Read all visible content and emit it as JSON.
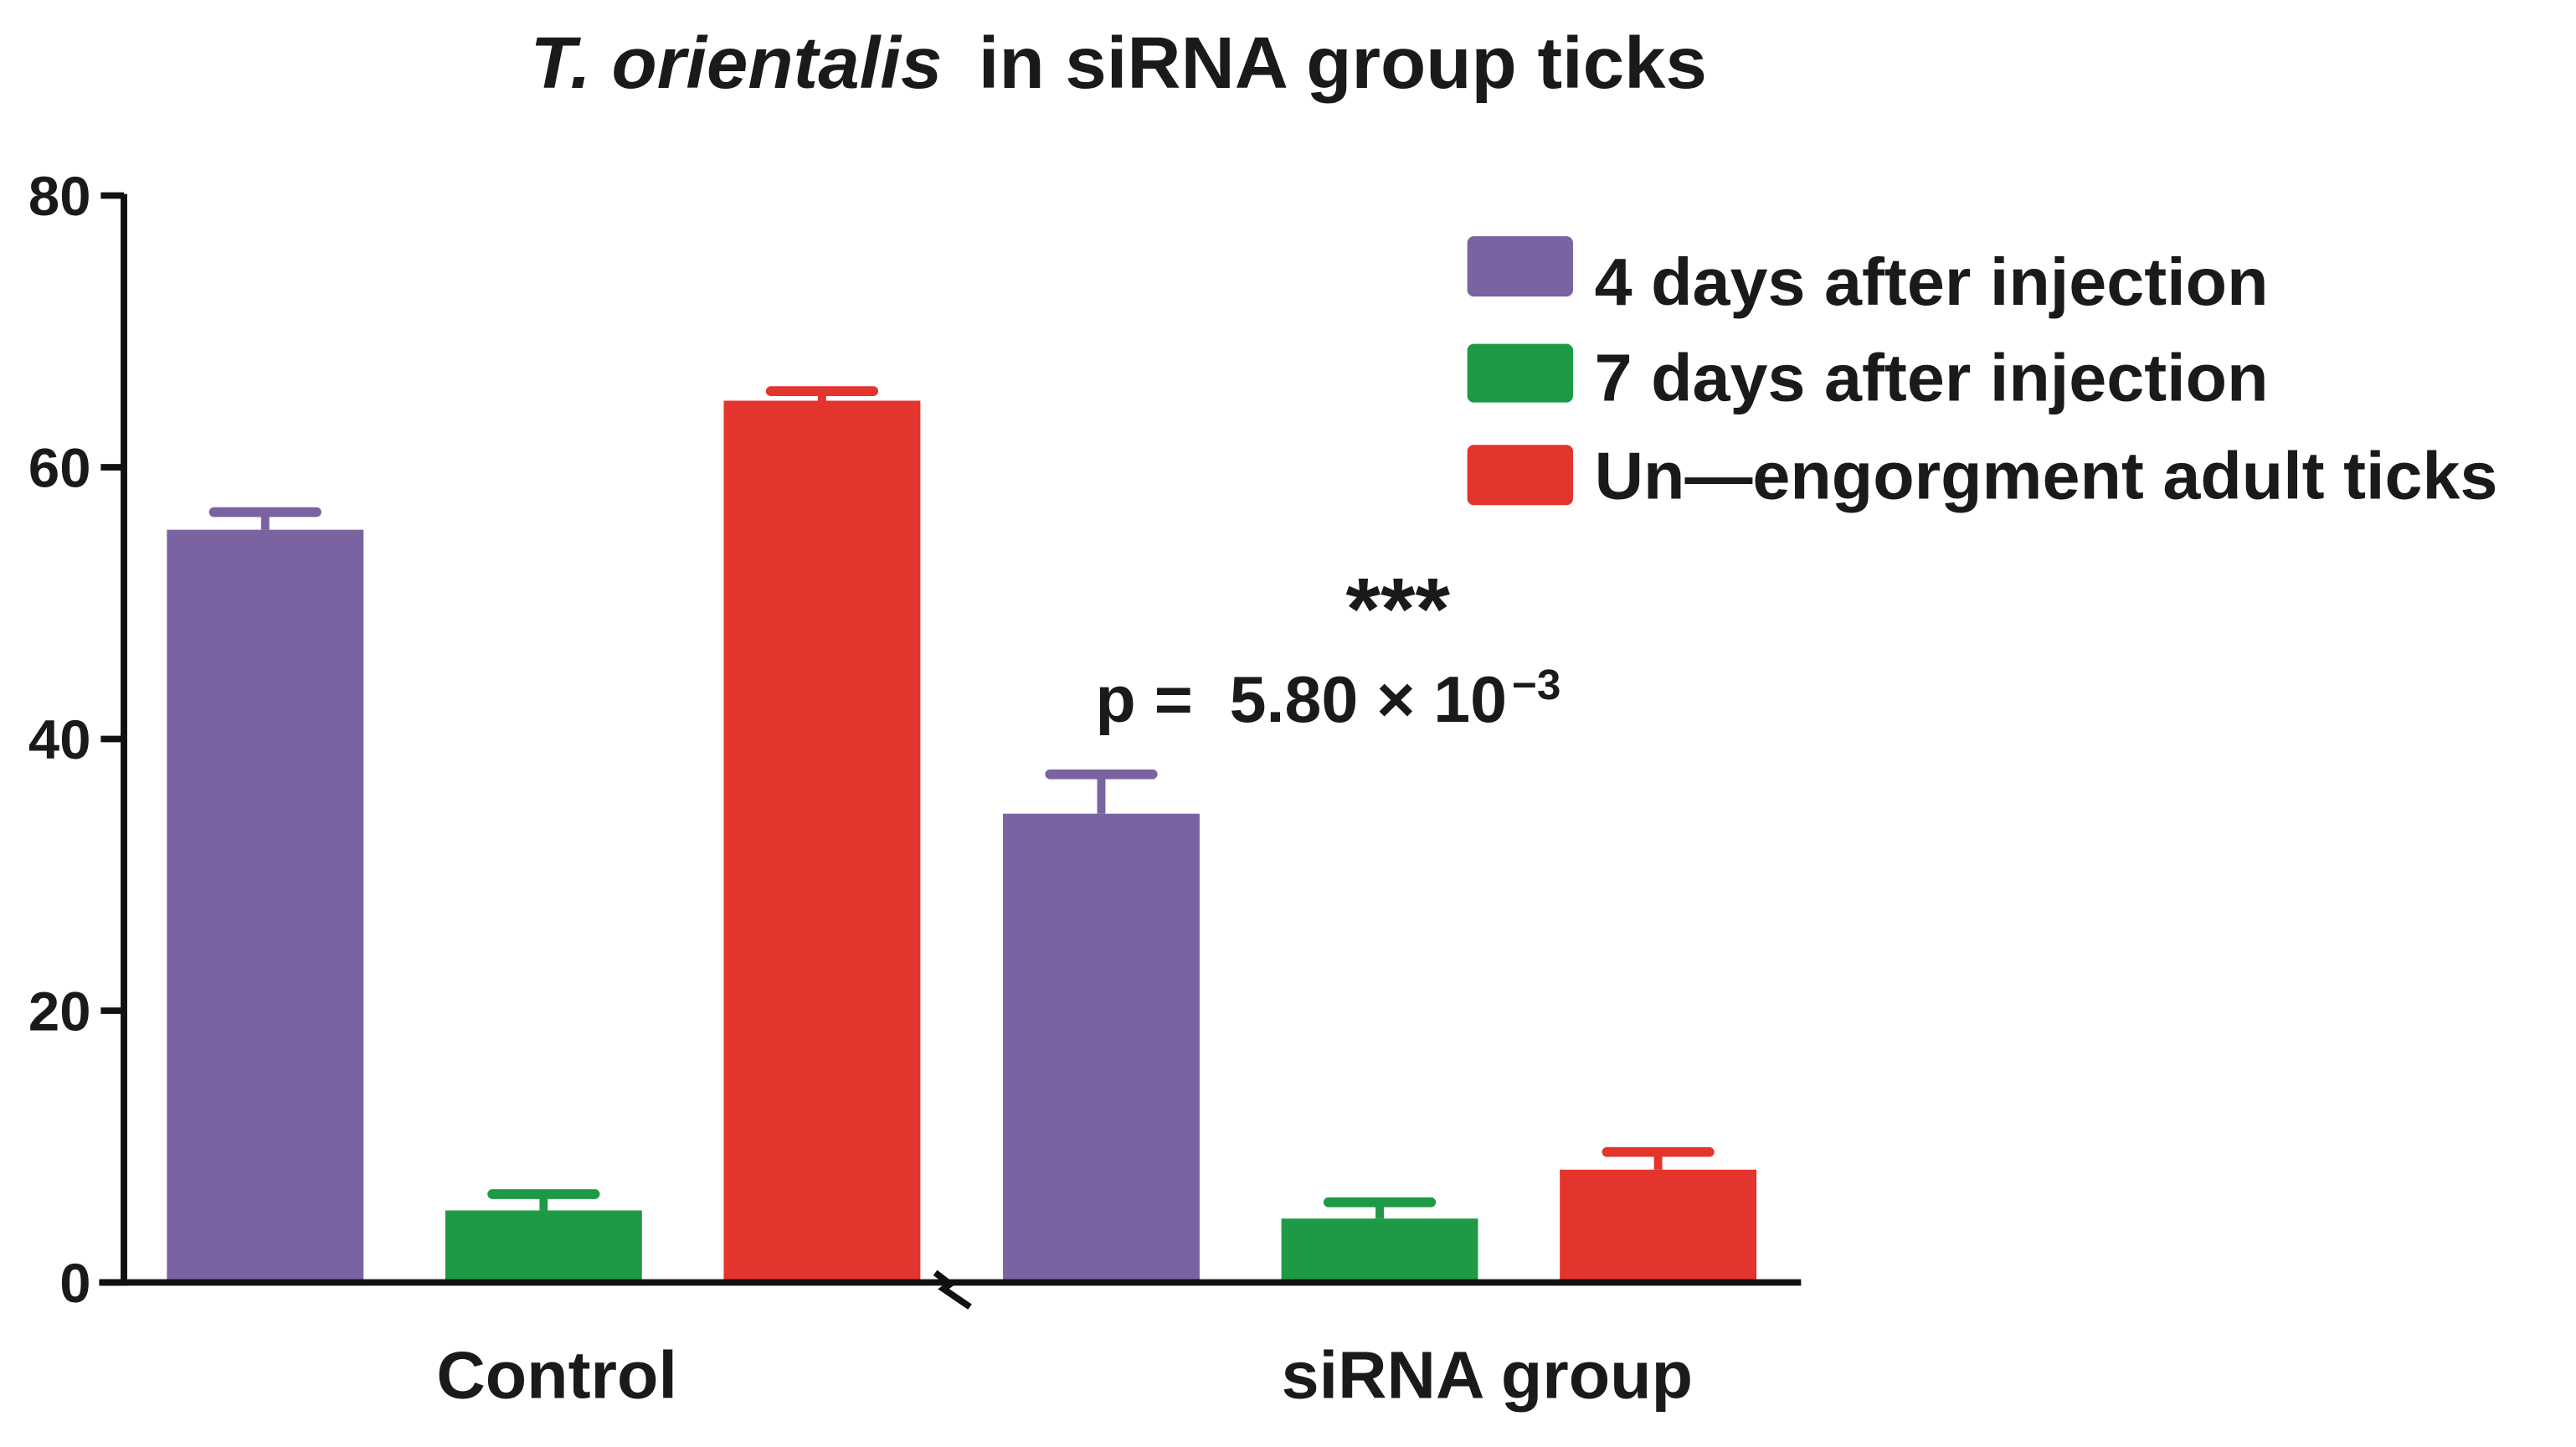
{
  "chart_data": {
    "type": "bar",
    "title": {
      "italic": "T. orientalis",
      "rest": "in siRNA group ticks"
    },
    "categories": [
      "Control",
      "siRNA group"
    ],
    "ylim": [
      0,
      80
    ],
    "yticks": [
      0,
      20,
      40,
      60,
      80
    ],
    "x_axis_break": true,
    "legend_position": "top-right",
    "series": [
      {
        "name": "4 days after injection",
        "color": "#7A63A0",
        "values": [
          55.4,
          34.5
        ],
        "error": [
          1.3,
          2.9
        ]
      },
      {
        "name": "7 days after injection",
        "color": "#1E9A46",
        "values": [
          5.3,
          4.7
        ],
        "error": [
          1.2,
          1.2
        ]
      },
      {
        "name": "Un—engorgment adult ticks",
        "color": "#E3342E",
        "values": [
          64.9,
          8.3
        ],
        "error": [
          0.7,
          1.3
        ]
      }
    ],
    "annotation": {
      "stars": "***",
      "p_text": "p =  5.80 × 10",
      "p_exponent": "−3"
    }
  }
}
